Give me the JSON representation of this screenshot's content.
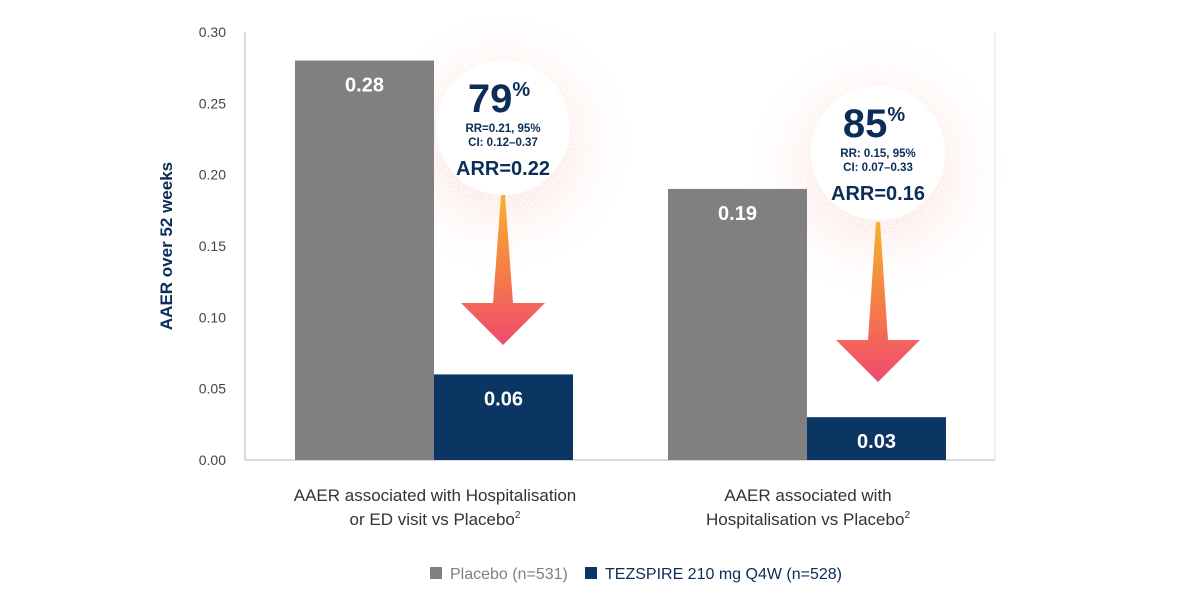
{
  "chart_data": {
    "type": "bar",
    "ylabel": "AAER over 52 weeks",
    "ylim": [
      0,
      0.3
    ],
    "yticks": [
      "0.00",
      "0.05",
      "0.10",
      "0.15",
      "0.20",
      "0.25",
      "0.30"
    ],
    "grid": false,
    "categories": [
      {
        "line1": "AAER associated with Hospitalisation",
        "line2": "or ED visit vs Placebo",
        "sup": "2"
      },
      {
        "line1": "AAER associated with",
        "line2": "Hospitalisation vs Placebo",
        "sup": "2"
      }
    ],
    "series": [
      {
        "name": "Placebo (n=531)",
        "color": "#808080",
        "values": [
          0.28,
          0.19
        ],
        "labels": [
          "0.28",
          "0.19"
        ]
      },
      {
        "name": "TEZSPIRE 210 mg Q4W (n=528)",
        "color": "#0b3562",
        "values": [
          0.06,
          0.03
        ],
        "labels": [
          "0.06",
          "0.03"
        ]
      }
    ],
    "legend_position": "bottom",
    "annotations": [
      {
        "percent": "79",
        "percent_sign": "%",
        "rr_line1": "RR=0.21, 95%",
        "rr_line2": "CI: 0.12–0.37",
        "arr": "ARR=0.22"
      },
      {
        "percent": "85",
        "percent_sign": "%",
        "rr_line1": "RR: 0.15, 95%",
        "rr_line2": "CI: 0.07–0.33",
        "arr": "ARR=0.16"
      }
    ],
    "colors": {
      "placebo": "#808080",
      "tezspire": "#0b3562",
      "text_navy": "#0b2d57",
      "arrow_top": "#f7b02c",
      "arrow_bottom": "#ef4a6f",
      "glow": "#f26a5a"
    }
  }
}
